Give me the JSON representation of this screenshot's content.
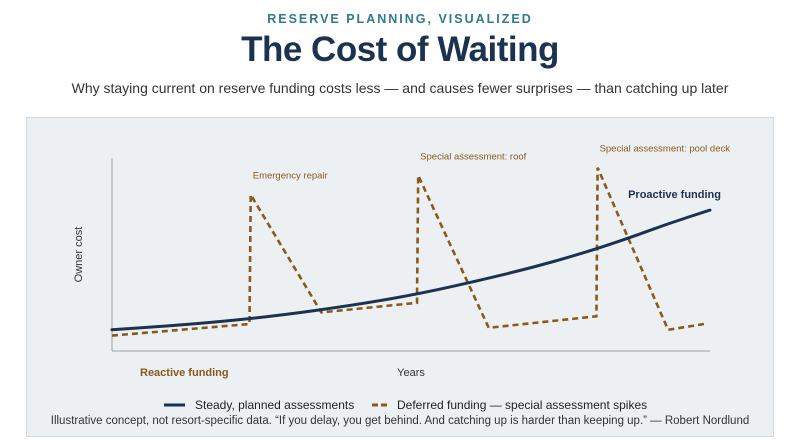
{
  "header": {
    "kicker": "RESERVE PLANNING, VISUALIZED",
    "title": "The Cost of Waiting",
    "subtitle": "Why staying current on reserve funding costs less — and causes fewer surprises — than catching up later"
  },
  "footnote": "Illustrative concept, not resort-specific data. “If you delay, you get behind. And catching up is harder than keeping up.” — Robert Nordlund",
  "colors": {
    "proactive": "#1b3350",
    "reactive": "#8a5a1b",
    "panel_bg": "#edf0f3",
    "axis": "#9aa0a6"
  },
  "chart_data": {
    "type": "line",
    "xlabel": "Years",
    "ylabel": "Owner cost",
    "xlim": [
      0,
      100
    ],
    "ylim": [
      0,
      100
    ],
    "grid": false,
    "ticks": false,
    "legend_position": "bottom-center",
    "series": [
      {
        "name": "Steady, planned assessments",
        "inline_label": "Proactive funding",
        "style": "solid",
        "color": "#1b3350",
        "x": [
          0,
          14,
          27,
          41,
          52,
          62,
          70,
          78,
          86,
          93,
          100
        ],
        "y": [
          11,
          14,
          18,
          24,
          30,
          37,
          43,
          50,
          58,
          66,
          73
        ]
      },
      {
        "name": "Deferred funding — special assessment spikes",
        "inline_label": "Reactive funding",
        "style": "dashed",
        "color": "#8a5a1b",
        "x": [
          0,
          23,
          23.2,
          35,
          51,
          51.2,
          63,
          81,
          81.2,
          93,
          99
        ],
        "y": [
          8,
          14,
          81,
          20,
          25,
          91,
          12,
          18,
          95,
          11,
          14
        ]
      }
    ],
    "annotations": [
      {
        "text": "Emergency repair",
        "x": 23.2,
        "y": 81
      },
      {
        "text": "Special assessment: roof",
        "x": 51.2,
        "y": 91
      },
      {
        "text": "Special assessment: pool deck",
        "x": 81.2,
        "y": 95
      }
    ]
  }
}
